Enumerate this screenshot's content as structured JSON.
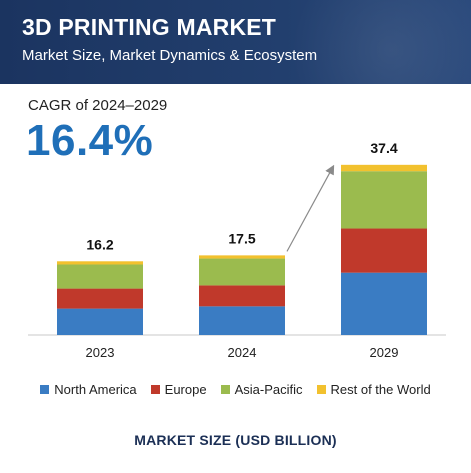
{
  "header": {
    "title": "3D PRINTING MARKET",
    "subtitle": "Market Size, Market Dynamics & Ecosystem"
  },
  "cagr": {
    "label": "CAGR of 2024–2029",
    "value": "16.4%"
  },
  "footer": {
    "title": "MARKET SIZE (USD BILLION)"
  },
  "chart_data": {
    "type": "bar",
    "stacked": true,
    "categories": [
      "2023",
      "2024",
      "2029"
    ],
    "totals": [
      16.2,
      17.5,
      37.4
    ],
    "total_labels": [
      "16.2",
      "17.5",
      "37.4"
    ],
    "series": [
      {
        "name": "North America",
        "color": "#3a7cc3",
        "values": [
          5.8,
          6.3,
          13.7
        ]
      },
      {
        "name": "Europe",
        "color": "#c0392b",
        "values": [
          4.4,
          4.6,
          9.7
        ]
      },
      {
        "name": "Asia-Pacific",
        "color": "#9bbb4e",
        "values": [
          5.3,
          5.9,
          12.6
        ]
      },
      {
        "name": "Rest of the World",
        "color": "#f2c12e",
        "values": [
          0.7,
          0.7,
          1.4
        ]
      }
    ],
    "legend_position": "bottom",
    "grid": false,
    "annotation": "arrow from 2024 bar to 2029 bar"
  }
}
